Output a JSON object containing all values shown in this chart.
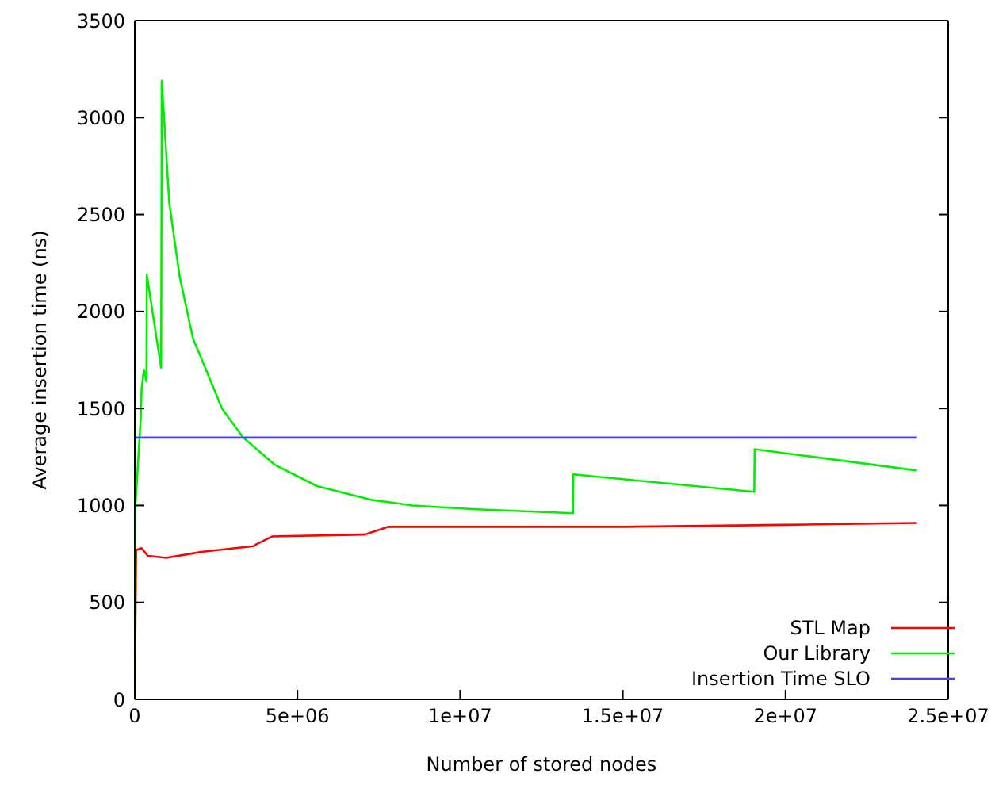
{
  "chart_data": {
    "type": "line",
    "xlabel": "Number of stored nodes",
    "ylabel": "Average insertion time (ns)",
    "xlim": [
      0,
      25000000
    ],
    "xticks": [
      0,
      {
        "value": 5000000,
        "label": "5e+06"
      },
      {
        "value": 10000000,
        "label": "1e+07"
      },
      {
        "value": 15000000,
        "label": "1.5e+07"
      },
      {
        "value": 20000000,
        "label": "2e+07"
      },
      {
        "value": 25000000,
        "label": "2.5e+07"
      }
    ],
    "ylim": [
      0,
      3500
    ],
    "yticks": [
      0,
      500,
      1000,
      1500,
      2000,
      2500,
      3000,
      3500
    ],
    "grid": false,
    "legend": "bottom right",
    "marker": "none",
    "line_style": "solid",
    "series": [
      {
        "name": "STL Map",
        "color": "#ff0000",
        "x": [
          0,
          40000,
          210000,
          400000,
          970000,
          2030000,
          3650000,
          3740000,
          4220000,
          7070000,
          7800000,
          10000000,
          15000000,
          20000000,
          24040000
        ],
        "values": [
          0,
          770,
          780,
          740,
          730,
          760,
          790,
          800,
          840,
          850,
          890,
          890,
          890,
          900,
          910
        ]
      },
      {
        "name": "Our Library",
        "color": "#00ee00",
        "x": [
          0,
          20000,
          180000,
          210000,
          280000,
          360000,
          370000,
          810000,
          830000,
          1060000,
          1380000,
          1790000,
          2190000,
          2680000,
          3330000,
          4300000,
          5600000,
          7230000,
          8530000,
          10480000,
          13470000,
          13480000,
          19040000,
          19050000,
          24040000
        ],
        "values": [
          0,
          1000,
          1440,
          1600,
          1700,
          1640,
          2190,
          1710,
          3190,
          2560,
          2180,
          1860,
          1700,
          1500,
          1350,
          1210,
          1100,
          1030,
          1000,
          980,
          960,
          1160,
          1070,
          1290,
          1180
        ]
      },
      {
        "name": "Insertion Time SLO",
        "color": "#4040ff",
        "x": [
          0,
          24040000
        ],
        "values": [
          1350,
          1350
        ]
      }
    ]
  }
}
